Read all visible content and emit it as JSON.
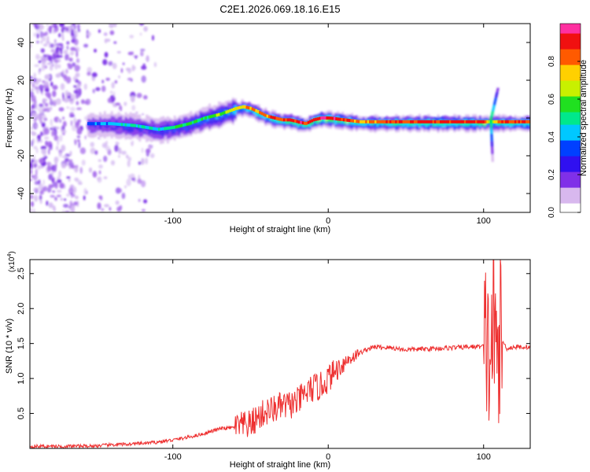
{
  "chart_data": [
    {
      "type": "heatmap",
      "title": "C2E1.2026.069.18.16.E15",
      "xlabel": "Height of straight line (km)",
      "ylabel": "Frequency (Hz)",
      "xlim": [
        -192,
        130
      ],
      "ylim": [
        -50,
        50
      ],
      "xticks": [
        -100,
        0,
        100
      ],
      "yticks": [
        -40,
        -20,
        0,
        20,
        40
      ],
      "colorbar": {
        "label": "Normalized spectral amplitude",
        "range": [
          0,
          1
        ],
        "ticks": [
          "0.0",
          "0.2",
          "0.4",
          "0.6",
          "0.8"
        ],
        "colors": [
          "#ffffff",
          "#d8b8ee",
          "#8030e8",
          "#3010f0",
          "#0040ff",
          "#00c8ff",
          "#00e88c",
          "#20e020",
          "#c8f000",
          "#ffd000",
          "#ff5a00",
          "#f01010",
          "#ff30a0"
        ]
      },
      "ridge": {
        "x": [
          -155,
          -140,
          -125,
          -110,
          -100,
          -90,
          -80,
          -70,
          -60,
          -55,
          -50,
          -45,
          -40,
          -35,
          -30,
          -25,
          -20,
          -15,
          -10,
          -5,
          0,
          10,
          20,
          40,
          60,
          80,
          100,
          104,
          110,
          130
        ],
        "y": [
          -3,
          -3,
          -4,
          -6,
          -5,
          -3,
          0,
          2,
          5,
          6,
          5,
          3,
          1,
          0,
          -1,
          -1,
          -2,
          -3,
          -1,
          0,
          0,
          -1,
          -2,
          -2,
          -2,
          -2,
          -2,
          -2,
          -2,
          -2
        ],
        "amplitude": [
          0.35,
          0.4,
          0.45,
          0.45,
          0.5,
          0.55,
          0.55,
          0.6,
          0.7,
          0.75,
          0.8,
          0.8,
          0.8,
          0.85,
          0.85,
          0.9,
          0.9,
          0.9,
          0.9,
          0.95,
          0.95,
          0.9,
          0.8,
          0.85,
          0.9,
          0.9,
          0.9,
          0.6,
          0.85,
          0.85
        ]
      }
    },
    {
      "type": "line",
      "xlabel": "Height of straight line (km)",
      "ylabel": "SNR (10 * v/v)",
      "yscale_label": "(x10",
      "yscale_exp": "4",
      "yscale_close": ")",
      "xlim": [
        -192,
        130
      ],
      "ylim": [
        0,
        27000
      ],
      "xticks": [
        -100,
        0,
        100
      ],
      "yticks": [
        0.5,
        1.0,
        1.5,
        2.0,
        2.5
      ],
      "ytick_labels": [
        "0.5",
        "1.0",
        "1.5",
        "2.0",
        "2.5"
      ],
      "series": [
        {
          "name": "SNR",
          "color": "#ee3030",
          "x": [
            -192,
            -170,
            -150,
            -140,
            -130,
            -120,
            -110,
            -100,
            -90,
            -80,
            -70,
            -60,
            -50,
            -45,
            -40,
            -35,
            -30,
            -25,
            -20,
            -15,
            -10,
            -5,
            0,
            5,
            10,
            15,
            20,
            25,
            30,
            40,
            50,
            60,
            70,
            80,
            90,
            100,
            102,
            104,
            106,
            108,
            110,
            115,
            120,
            130
          ],
          "y": [
            300,
            300,
            350,
            500,
            600,
            700,
            900,
            1200,
            1600,
            2100,
            2800,
            3000,
            3400,
            4500,
            5200,
            5600,
            6000,
            6200,
            6600,
            7800,
            8600,
            8800,
            10000,
            11200,
            12200,
            13000,
            13600,
            14200,
            14500,
            14400,
            14100,
            14200,
            14300,
            14400,
            14500,
            14600,
            15200,
            12000,
            18000,
            13000,
            16000,
            14300,
            14500,
            14500
          ]
        }
      ]
    }
  ]
}
